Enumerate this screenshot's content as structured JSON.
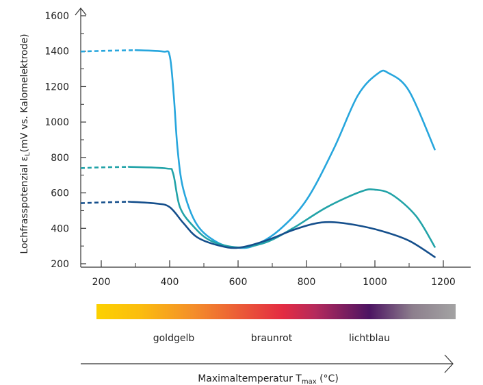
{
  "chart_data": {
    "type": "line",
    "title": "",
    "ylabel": {
      "main": "Lochfrasspotenzial ε",
      "sub": "L",
      "rest": "(mV vs. Kalomelektrode)"
    },
    "xlabel": {
      "main": "Maximaltemperatur T",
      "sub": "max",
      "rest": " (°C)"
    },
    "xlim": [
      140,
      1280
    ],
    "ylim": [
      200,
      1600
    ],
    "x_ticks": [
      200,
      400,
      600,
      800,
      1000,
      1200
    ],
    "x_minor_ticks": [
      300,
      500,
      700,
      900,
      1100
    ],
    "y_ticks": [
      200,
      400,
      600,
      800,
      1000,
      1200,
      1400,
      1600
    ],
    "y_minor_ticks": [
      300,
      500,
      700,
      900,
      1100,
      1300,
      1500
    ],
    "grid": false,
    "series": [
      {
        "color": "#27a6dd",
        "dashed": [
          [
            140,
            1398
          ],
          [
            210,
            1402
          ],
          [
            300,
            1406
          ]
        ],
        "values": [
          [
            300,
            1406
          ],
          [
            380,
            1398
          ],
          [
            400,
            1375
          ],
          [
            412,
            1150
          ],
          [
            423,
            850
          ],
          [
            440,
            620
          ],
          [
            480,
            420
          ],
          [
            540,
            320
          ],
          [
            600,
            290
          ],
          [
            650,
            305
          ],
          [
            720,
            390
          ],
          [
            800,
            560
          ],
          [
            880,
            850
          ],
          [
            950,
            1150
          ],
          [
            1010,
            1276
          ],
          [
            1040,
            1276
          ],
          [
            1100,
            1175
          ],
          [
            1175,
            845
          ]
        ]
      },
      {
        "color": "#22a3a8",
        "dashed": [
          [
            140,
            740
          ],
          [
            200,
            744
          ],
          [
            280,
            747
          ]
        ],
        "values": [
          [
            280,
            747
          ],
          [
            390,
            738
          ],
          [
            410,
            710
          ],
          [
            430,
            520
          ],
          [
            470,
            410
          ],
          [
            520,
            330
          ],
          [
            600,
            292
          ],
          [
            680,
            320
          ],
          [
            760,
            400
          ],
          [
            860,
            520
          ],
          [
            960,
            608
          ],
          [
            1000,
            618
          ],
          [
            1050,
            590
          ],
          [
            1120,
            470
          ],
          [
            1175,
            295
          ]
        ]
      },
      {
        "color": "#154f8c",
        "dashed": [
          [
            140,
            542
          ],
          [
            200,
            546
          ],
          [
            280,
            550
          ]
        ],
        "values": [
          [
            280,
            550
          ],
          [
            360,
            540
          ],
          [
            400,
            520
          ],
          [
            440,
            430
          ],
          [
            480,
            350
          ],
          [
            540,
            305
          ],
          [
            600,
            290
          ],
          [
            680,
            330
          ],
          [
            760,
            390
          ],
          [
            820,
            425
          ],
          [
            870,
            435
          ],
          [
            940,
            420
          ],
          [
            1020,
            385
          ],
          [
            1100,
            330
          ],
          [
            1175,
            238
          ]
        ]
      }
    ],
    "colorbar": {
      "stops": [
        {
          "t": 0.0,
          "color": "#fcd100"
        },
        {
          "t": 0.12,
          "color": "#fbbd0e"
        },
        {
          "t": 0.27,
          "color": "#f48e2a"
        },
        {
          "t": 0.52,
          "color": "#e32b43"
        },
        {
          "t": 0.61,
          "color": "#b42a5c"
        },
        {
          "t": 0.76,
          "color": "#4c1462"
        },
        {
          "t": 0.88,
          "color": "#8d7f8d"
        },
        {
          "t": 1.0,
          "color": "#a3a3a3"
        }
      ]
    },
    "annotations": [
      "goldgelb",
      "braunrot",
      "lichtblau"
    ]
  }
}
